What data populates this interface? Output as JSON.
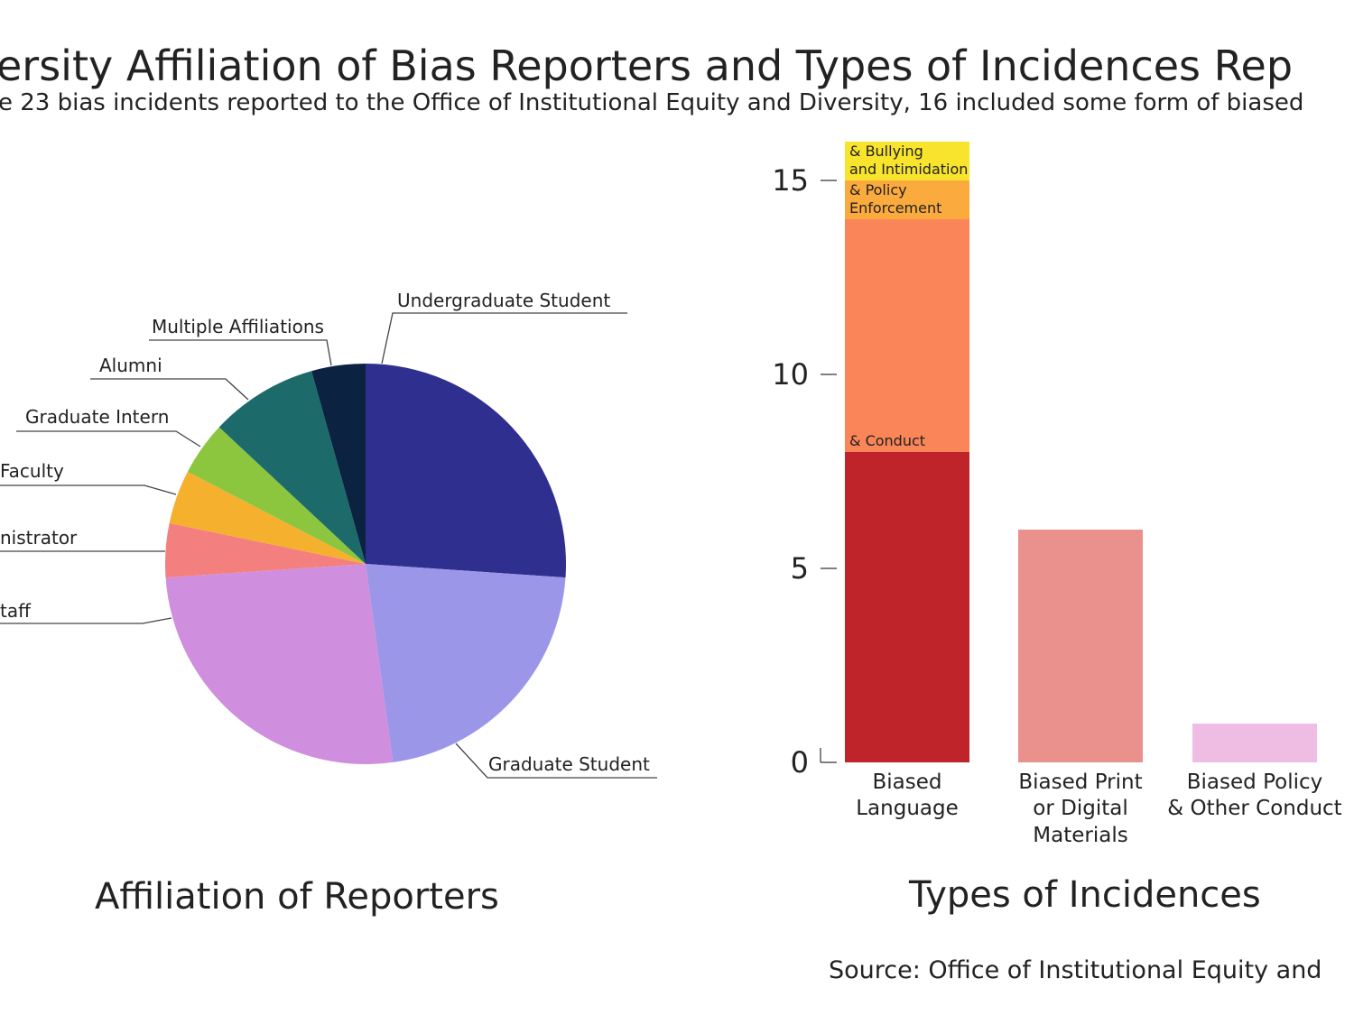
{
  "title": "ersity Affiliation of Bias Reporters and Types of Incidences Rep",
  "subtitle": "e 23 bias incidents reported to the Office of Institutional Equity and Diversity, 16 included some form of biased",
  "source": "Source: Office of Institutional Equity and",
  "chart_data": [
    {
      "type": "pie",
      "title": "Affiliation of Reporters",
      "categories": [
        "Undergraduate Student",
        "Graduate Student",
        "taff",
        "nistrator",
        "Faculty",
        "Graduate Intern",
        "Alumni",
        "Multiple Affiliations"
      ],
      "values": [
        6,
        5,
        6,
        1,
        1,
        1,
        2,
        1
      ],
      "colors": [
        "#2e2f8e",
        "#9b96e8",
        "#d08ede",
        "#f47f7f",
        "#f5b02e",
        "#8cc63f",
        "#1c6a6a",
        "#0b2340"
      ]
    },
    {
      "type": "stacked-bar",
      "title": "Types of Incidences",
      "categories": [
        "Biased\nLanguage",
        "Biased Print\nor Digital\nMaterials",
        "Biased Policy\n& Other Conduct"
      ],
      "series": [
        {
          "colors": [
            "#c0242b",
            "#ea918d",
            "#efbde3"
          ],
          "values": [
            8,
            6,
            1
          ]
        },
        {
          "name": "& Conduct",
          "color": "#f98558",
          "values": [
            6,
            null,
            null
          ]
        },
        {
          "name": "& Policy\nEnforcement",
          "color": "#fbab3e",
          "values": [
            1,
            null,
            null
          ]
        },
        {
          "name": "& Bullying\nand Intimidation",
          "color": "#f8e42c",
          "values": [
            1,
            null,
            null
          ]
        }
      ],
      "ylim": [
        0,
        16
      ],
      "yticks": [
        0,
        5,
        10,
        15
      ]
    }
  ]
}
